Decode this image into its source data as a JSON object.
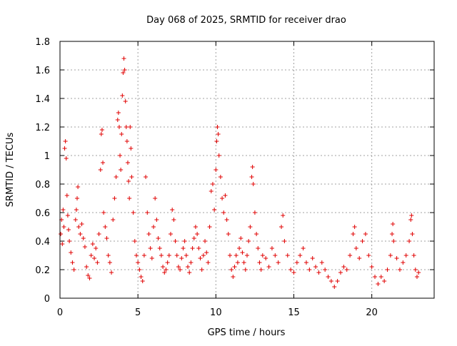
{
  "chart_data": {
    "type": "scatter",
    "title": "Day 068 of 2025, SRMTID for receiver drao",
    "xlabel": "GPS time / hours",
    "ylabel": "SRMTID / TECUs",
    "xlim": [
      0,
      24
    ],
    "ylim": [
      0,
      1.8
    ],
    "xticks": [
      0,
      5,
      10,
      15,
      20
    ],
    "yticks": [
      0,
      0.2,
      0.4,
      0.6,
      0.8,
      1,
      1.2,
      1.4,
      1.6,
      1.8
    ],
    "xtick_labels": [
      "0",
      "5",
      "10",
      "15",
      "20"
    ],
    "ytick_labels": [
      "0",
      "0.2",
      "0.4",
      "0.6",
      "0.8",
      "1",
      "1.2",
      "1.4",
      "1.6",
      "1.8"
    ],
    "grid": true,
    "marker": "plus",
    "color": "#e00000",
    "series": [
      {
        "name": "SRMTID",
        "points": [
          [
            0.05,
            0.45
          ],
          [
            0.1,
            0.55
          ],
          [
            0.15,
            0.38
          ],
          [
            0.2,
            0.62
          ],
          [
            0.25,
            0.5
          ],
          [
            0.3,
            1.05
          ],
          [
            0.35,
            1.1
          ],
          [
            0.4,
            0.98
          ],
          [
            0.45,
            0.72
          ],
          [
            0.5,
            0.58
          ],
          [
            0.55,
            0.48
          ],
          [
            0.6,
            0.4
          ],
          [
            0.7,
            0.32
          ],
          [
            0.8,
            0.25
          ],
          [
            0.9,
            0.2
          ],
          [
            1.0,
            0.55
          ],
          [
            1.05,
            0.62
          ],
          [
            1.1,
            0.7
          ],
          [
            1.15,
            0.78
          ],
          [
            1.2,
            0.5
          ],
          [
            1.3,
            0.45
          ],
          [
            1.4,
            0.52
          ],
          [
            1.5,
            0.42
          ],
          [
            1.6,
            0.36
          ],
          [
            1.7,
            0.22
          ],
          [
            1.8,
            0.16
          ],
          [
            1.9,
            0.14
          ],
          [
            2.0,
            0.3
          ],
          [
            2.1,
            0.38
          ],
          [
            2.2,
            0.28
          ],
          [
            2.3,
            0.35
          ],
          [
            2.4,
            0.25
          ],
          [
            2.5,
            0.45
          ],
          [
            2.6,
            0.9
          ],
          [
            2.65,
            1.15
          ],
          [
            2.7,
            1.18
          ],
          [
            2.75,
            0.95
          ],
          [
            2.8,
            0.6
          ],
          [
            2.9,
            0.5
          ],
          [
            3.0,
            0.42
          ],
          [
            3.1,
            0.3
          ],
          [
            3.2,
            0.25
          ],
          [
            3.3,
            0.18
          ],
          [
            3.4,
            0.55
          ],
          [
            3.5,
            0.7
          ],
          [
            3.6,
            0.85
          ],
          [
            3.7,
            1.25
          ],
          [
            3.75,
            1.3
          ],
          [
            3.8,
            1.2
          ],
          [
            3.85,
            1.0
          ],
          [
            3.9,
            0.9
          ],
          [
            3.95,
            1.15
          ],
          [
            4.0,
            1.42
          ],
          [
            4.05,
            1.58
          ],
          [
            4.1,
            1.68
          ],
          [
            4.15,
            1.6
          ],
          [
            4.2,
            1.38
          ],
          [
            4.25,
            1.2
          ],
          [
            4.3,
            1.1
          ],
          [
            4.35,
            0.95
          ],
          [
            4.4,
            0.82
          ],
          [
            4.45,
            0.7
          ],
          [
            4.5,
            1.2
          ],
          [
            4.55,
            1.05
          ],
          [
            4.6,
            0.85
          ],
          [
            4.7,
            0.6
          ],
          [
            4.8,
            0.4
          ],
          [
            4.9,
            0.3
          ],
          [
            5.0,
            0.25
          ],
          [
            5.1,
            0.2
          ],
          [
            5.2,
            0.15
          ],
          [
            5.3,
            0.12
          ],
          [
            5.4,
            0.3
          ],
          [
            5.5,
            0.85
          ],
          [
            5.6,
            0.6
          ],
          [
            5.7,
            0.45
          ],
          [
            5.8,
            0.35
          ],
          [
            5.9,
            0.28
          ],
          [
            6.0,
            0.5
          ],
          [
            6.1,
            0.7
          ],
          [
            6.2,
            0.55
          ],
          [
            6.3,
            0.42
          ],
          [
            6.4,
            0.35
          ],
          [
            6.5,
            0.3
          ],
          [
            6.6,
            0.22
          ],
          [
            6.7,
            0.18
          ],
          [
            6.8,
            0.2
          ],
          [
            6.9,
            0.25
          ],
          [
            7.0,
            0.3
          ],
          [
            7.1,
            0.45
          ],
          [
            7.2,
            0.62
          ],
          [
            7.3,
            0.55
          ],
          [
            7.4,
            0.4
          ],
          [
            7.5,
            0.3
          ],
          [
            7.6,
            0.22
          ],
          [
            7.7,
            0.2
          ],
          [
            7.8,
            0.28
          ],
          [
            7.9,
            0.35
          ],
          [
            8.0,
            0.4
          ],
          [
            8.1,
            0.3
          ],
          [
            8.2,
            0.22
          ],
          [
            8.3,
            0.18
          ],
          [
            8.4,
            0.25
          ],
          [
            8.5,
            0.35
          ],
          [
            8.6,
            0.42
          ],
          [
            8.7,
            0.5
          ],
          [
            8.8,
            0.45
          ],
          [
            8.9,
            0.35
          ],
          [
            9.0,
            0.28
          ],
          [
            9.1,
            0.2
          ],
          [
            9.2,
            0.3
          ],
          [
            9.3,
            0.4
          ],
          [
            9.4,
            0.32
          ],
          [
            9.5,
            0.25
          ],
          [
            9.6,
            0.5
          ],
          [
            9.7,
            0.75
          ],
          [
            9.8,
            0.8
          ],
          [
            9.9,
            0.62
          ],
          [
            10.0,
            0.9
          ],
          [
            10.05,
            1.1
          ],
          [
            10.1,
            1.2
          ],
          [
            10.15,
            1.15
          ],
          [
            10.2,
            1.0
          ],
          [
            10.3,
            0.85
          ],
          [
            10.4,
            0.7
          ],
          [
            10.5,
            0.6
          ],
          [
            10.6,
            0.72
          ],
          [
            10.7,
            0.55
          ],
          [
            10.8,
            0.45
          ],
          [
            10.9,
            0.3
          ],
          [
            11.0,
            0.2
          ],
          [
            11.1,
            0.15
          ],
          [
            11.2,
            0.22
          ],
          [
            11.3,
            0.3
          ],
          [
            11.4,
            0.25
          ],
          [
            11.5,
            0.35
          ],
          [
            11.6,
            0.42
          ],
          [
            11.7,
            0.32
          ],
          [
            11.8,
            0.25
          ],
          [
            11.9,
            0.2
          ],
          [
            12.0,
            0.3
          ],
          [
            12.1,
            0.4
          ],
          [
            12.2,
            0.5
          ],
          [
            12.3,
            0.85
          ],
          [
            12.35,
            0.92
          ],
          [
            12.4,
            0.8
          ],
          [
            12.5,
            0.6
          ],
          [
            12.6,
            0.45
          ],
          [
            12.7,
            0.35
          ],
          [
            12.8,
            0.25
          ],
          [
            12.9,
            0.2
          ],
          [
            13.0,
            0.3
          ],
          [
            13.2,
            0.28
          ],
          [
            13.4,
            0.22
          ],
          [
            13.6,
            0.35
          ],
          [
            13.8,
            0.3
          ],
          [
            14.0,
            0.25
          ],
          [
            14.2,
            0.5
          ],
          [
            14.3,
            0.58
          ],
          [
            14.4,
            0.4
          ],
          [
            14.6,
            0.3
          ],
          [
            14.8,
            0.2
          ],
          [
            15.0,
            0.18
          ],
          [
            15.2,
            0.25
          ],
          [
            15.4,
            0.3
          ],
          [
            15.6,
            0.35
          ],
          [
            15.8,
            0.25
          ],
          [
            16.0,
            0.2
          ],
          [
            16.2,
            0.28
          ],
          [
            16.4,
            0.22
          ],
          [
            16.6,
            0.18
          ],
          [
            16.8,
            0.25
          ],
          [
            17.0,
            0.2
          ],
          [
            17.2,
            0.15
          ],
          [
            17.4,
            0.12
          ],
          [
            17.6,
            0.08
          ],
          [
            17.8,
            0.12
          ],
          [
            18.0,
            0.18
          ],
          [
            18.2,
            0.22
          ],
          [
            18.4,
            0.2
          ],
          [
            18.6,
            0.3
          ],
          [
            18.8,
            0.45
          ],
          [
            18.9,
            0.5
          ],
          [
            19.0,
            0.35
          ],
          [
            19.2,
            0.28
          ],
          [
            19.4,
            0.4
          ],
          [
            19.6,
            0.45
          ],
          [
            19.8,
            0.3
          ],
          [
            20.0,
            0.22
          ],
          [
            20.2,
            0.15
          ],
          [
            20.4,
            0.1
          ],
          [
            20.6,
            0.15
          ],
          [
            20.8,
            0.12
          ],
          [
            21.0,
            0.2
          ],
          [
            21.2,
            0.3
          ],
          [
            21.3,
            0.45
          ],
          [
            21.35,
            0.52
          ],
          [
            21.4,
            0.4
          ],
          [
            21.6,
            0.28
          ],
          [
            21.8,
            0.2
          ],
          [
            22.0,
            0.25
          ],
          [
            22.2,
            0.3
          ],
          [
            22.4,
            0.4
          ],
          [
            22.5,
            0.55
          ],
          [
            22.55,
            0.58
          ],
          [
            22.6,
            0.45
          ],
          [
            22.7,
            0.3
          ],
          [
            22.8,
            0.2
          ],
          [
            22.9,
            0.15
          ],
          [
            23.0,
            0.18
          ]
        ]
      }
    ]
  }
}
